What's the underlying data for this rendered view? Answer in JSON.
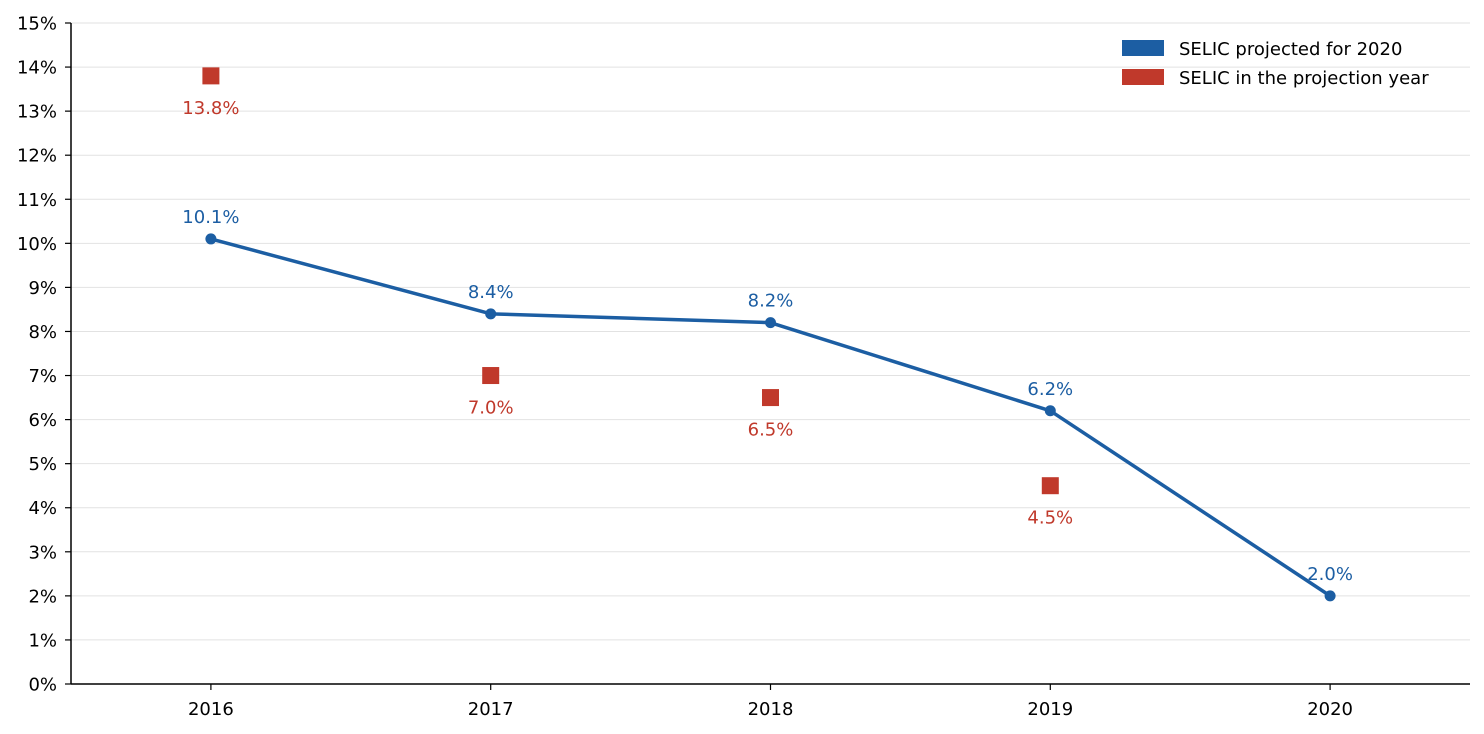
{
  "chart_data": {
    "type": "line",
    "title": "",
    "xlabel": "",
    "ylabel": "",
    "x": [
      2016,
      2017,
      2018,
      2019,
      2020
    ],
    "x_tick_labels": [
      "2016",
      "2017",
      "2018",
      "2019",
      "2020"
    ],
    "xlim": [
      2015.5,
      2020.5
    ],
    "ylim": [
      0,
      15
    ],
    "y_ticks": [
      0,
      1,
      2,
      3,
      4,
      5,
      6,
      7,
      8,
      9,
      10,
      11,
      12,
      13,
      14,
      15
    ],
    "y_tick_labels": [
      "0%",
      "1%",
      "2%",
      "3%",
      "4%",
      "5%",
      "6%",
      "7%",
      "8%",
      "9%",
      "10%",
      "11%",
      "12%",
      "13%",
      "14%",
      "15%"
    ],
    "grid": "horizontal",
    "legend_position": "top-right",
    "series": [
      {
        "name": "SELIC projected for 2020",
        "marker": "circle",
        "line": true,
        "color": "#1c5ea3",
        "x": [
          2016,
          2017,
          2018,
          2019,
          2020
        ],
        "values": [
          10.1,
          8.4,
          8.2,
          6.2,
          2.0
        ],
        "labels": [
          "10.1%",
          "8.4%",
          "8.2%",
          "6.2%",
          "2.0%"
        ]
      },
      {
        "name": "SELIC in the projection year",
        "marker": "square",
        "line": false,
        "color": "#c0392b",
        "x": [
          2016,
          2017,
          2018,
          2019
        ],
        "values": [
          13.8,
          7.0,
          6.5,
          4.5
        ],
        "labels": [
          "13.8%",
          "7.0%",
          "6.5%",
          "4.5%"
        ]
      }
    ]
  }
}
